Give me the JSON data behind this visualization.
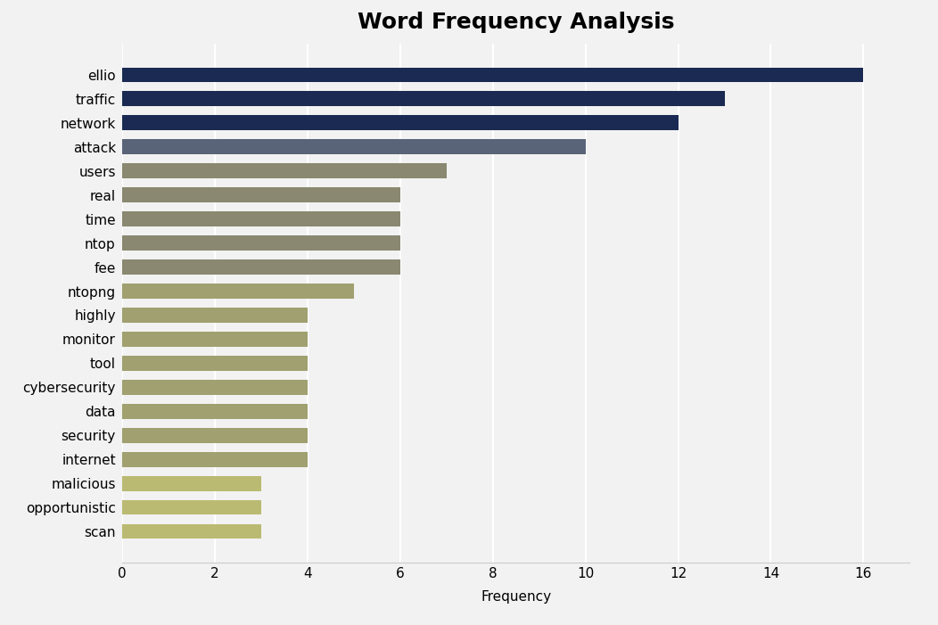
{
  "title": "Word Frequency Analysis",
  "xlabel": "Frequency",
  "categories": [
    "ellio",
    "traffic",
    "network",
    "attack",
    "users",
    "real",
    "time",
    "ntop",
    "fee",
    "ntopng",
    "highly",
    "monitor",
    "tool",
    "cybersecurity",
    "data",
    "security",
    "internet",
    "malicious",
    "opportunistic",
    "scan"
  ],
  "values": [
    16,
    13,
    12,
    10,
    7,
    6,
    6,
    6,
    6,
    5,
    4,
    4,
    4,
    4,
    4,
    4,
    4,
    3,
    3,
    3
  ],
  "colors": [
    "#1b2a52",
    "#1b2a52",
    "#1b2a52",
    "#5a6478",
    "#8a8870",
    "#8a8870",
    "#8a8870",
    "#8a8870",
    "#8a8870",
    "#a0a070",
    "#a0a070",
    "#a0a070",
    "#a0a070",
    "#a0a070",
    "#a0a070",
    "#a0a070",
    "#a0a070",
    "#baba72",
    "#baba72",
    "#baba72"
  ],
  "xlim": [
    0,
    17
  ],
  "xticks": [
    0,
    2,
    4,
    6,
    8,
    10,
    12,
    14,
    16
  ],
  "background_color": "#f2f2f2",
  "plot_bg_color": "#f2f2f2",
  "title_fontsize": 18,
  "label_fontsize": 11,
  "tick_fontsize": 11,
  "bar_height": 0.62,
  "figsize": [
    10.52,
    7.01
  ]
}
